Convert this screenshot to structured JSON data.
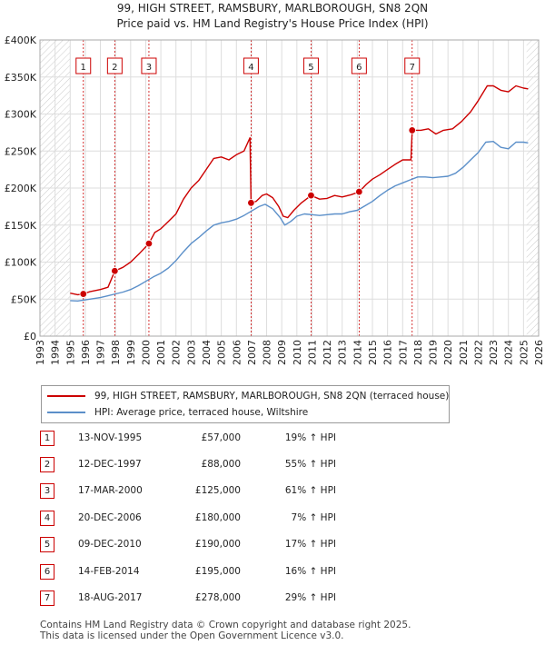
{
  "title_line1": "99, HIGH STREET, RAMSBURY, MARLBOROUGH, SN8 2QN",
  "title_line2": "Price paid vs. HM Land Registry's House Price Index (HPI)",
  "colors": {
    "property_line": "#cc0000",
    "hpi_line": "#5b8fc9",
    "grid": "#dddddd",
    "hatch": "#cccccc",
    "marker": "#cc0000"
  },
  "legend": {
    "property_label": "99, HIGH STREET, RAMSBURY, MARLBOROUGH, SN8 2QN (terraced house)",
    "hpi_label": "HPI: Average price, terraced house, Wiltshire"
  },
  "sales": [
    {
      "num": "1",
      "date": "13-NOV-1995",
      "price": "£57,000",
      "hpi": "19% ↑ HPI"
    },
    {
      "num": "2",
      "date": "12-DEC-1997",
      "price": "£88,000",
      "hpi": "55% ↑ HPI"
    },
    {
      "num": "3",
      "date": "17-MAR-2000",
      "price": "£125,000",
      "hpi": "61% ↑ HPI"
    },
    {
      "num": "4",
      "date": "20-DEC-2006",
      "price": "£180,000",
      "hpi": "7% ↑ HPI"
    },
    {
      "num": "5",
      "date": "09-DEC-2010",
      "price": "£190,000",
      "hpi": "17% ↑ HPI"
    },
    {
      "num": "6",
      "date": "14-FEB-2014",
      "price": "£195,000",
      "hpi": "16% ↑ HPI"
    },
    {
      "num": "7",
      "date": "18-AUG-2017",
      "price": "£278,000",
      "hpi": "29% ↑ HPI"
    }
  ],
  "footer_line1": "Contains HM Land Registry data © Crown copyright and database right 2025.",
  "footer_line2": "This data is licensed under the Open Government Licence v3.0.",
  "chart_data": {
    "type": "line",
    "title": "99, HIGH STREET, RAMSBURY, MARLBOROUGH, SN8 2QN",
    "subtitle": "Price paid vs. HM Land Registry's House Price Index (HPI)",
    "xlabel": "",
    "ylabel": "",
    "xlim": [
      1993,
      2026
    ],
    "ylim": [
      0,
      400000
    ],
    "x_ticks": [
      1993,
      1994,
      1995,
      1996,
      1997,
      1998,
      1999,
      2000,
      2001,
      2002,
      2003,
      2004,
      2005,
      2006,
      2007,
      2008,
      2009,
      2010,
      2011,
      2012,
      2013,
      2014,
      2015,
      2016,
      2017,
      2018,
      2019,
      2020,
      2021,
      2022,
      2023,
      2024,
      2025,
      2026
    ],
    "y_ticks": [
      0,
      50000,
      100000,
      150000,
      200000,
      250000,
      300000,
      350000,
      400000
    ],
    "y_tick_labels": [
      "£0",
      "£50K",
      "£100K",
      "£150K",
      "£200K",
      "£250K",
      "£300K",
      "£350K",
      "£400K"
    ],
    "hatched_before": 1995.0,
    "hatched_after": 2025.2,
    "grid": true,
    "series": [
      {
        "name": "99, HIGH STREET, RAMSBURY, MARLBOROUGH, SN8 2QN (terraced house)",
        "color": "#cc0000",
        "points": [
          [
            1995.0,
            58000
          ],
          [
            1995.5,
            56000
          ],
          [
            1995.87,
            57000
          ],
          [
            1996.3,
            60000
          ],
          [
            1997.0,
            63000
          ],
          [
            1997.5,
            66000
          ],
          [
            1997.95,
            88000
          ],
          [
            1998.5,
            93000
          ],
          [
            1999.0,
            100000
          ],
          [
            1999.6,
            112000
          ],
          [
            2000.21,
            125000
          ],
          [
            2000.6,
            140000
          ],
          [
            2001.0,
            145000
          ],
          [
            2001.5,
            155000
          ],
          [
            2002.0,
            165000
          ],
          [
            2002.5,
            185000
          ],
          [
            2003.0,
            200000
          ],
          [
            2003.5,
            210000
          ],
          [
            2004.0,
            225000
          ],
          [
            2004.5,
            240000
          ],
          [
            2005.0,
            242000
          ],
          [
            2005.5,
            238000
          ],
          [
            2006.0,
            245000
          ],
          [
            2006.5,
            250000
          ],
          [
            2006.9,
            268000
          ],
          [
            2006.97,
            180000
          ],
          [
            2007.3,
            182000
          ],
          [
            2007.7,
            190000
          ],
          [
            2008.0,
            192000
          ],
          [
            2008.4,
            187000
          ],
          [
            2008.8,
            175000
          ],
          [
            2009.1,
            162000
          ],
          [
            2009.4,
            160000
          ],
          [
            2009.8,
            170000
          ],
          [
            2010.3,
            180000
          ],
          [
            2010.94,
            190000
          ],
          [
            2011.5,
            185000
          ],
          [
            2012.0,
            186000
          ],
          [
            2012.5,
            190000
          ],
          [
            2013.0,
            188000
          ],
          [
            2013.6,
            191000
          ],
          [
            2014.12,
            195000
          ],
          [
            2014.6,
            205000
          ],
          [
            2015.0,
            212000
          ],
          [
            2015.5,
            218000
          ],
          [
            2016.0,
            225000
          ],
          [
            2016.5,
            232000
          ],
          [
            2017.0,
            238000
          ],
          [
            2017.55,
            238000
          ],
          [
            2017.63,
            278000
          ],
          [
            2018.2,
            278000
          ],
          [
            2018.7,
            280000
          ],
          [
            2019.2,
            273000
          ],
          [
            2019.7,
            278000
          ],
          [
            2020.3,
            280000
          ],
          [
            2020.9,
            290000
          ],
          [
            2021.5,
            303000
          ],
          [
            2022.0,
            318000
          ],
          [
            2022.6,
            338000
          ],
          [
            2023.0,
            338000
          ],
          [
            2023.5,
            332000
          ],
          [
            2024.0,
            330000
          ],
          [
            2024.5,
            338000
          ],
          [
            2025.0,
            335000
          ],
          [
            2025.3,
            334000
          ]
        ]
      },
      {
        "name": "HPI: Average price, terraced house, Wiltshire",
        "color": "#5b8fc9",
        "points": [
          [
            1995.0,
            48000
          ],
          [
            1995.5,
            47500
          ],
          [
            1996.0,
            49000
          ],
          [
            1996.5,
            50500
          ],
          [
            1997.0,
            52000
          ],
          [
            1997.5,
            54500
          ],
          [
            1998.0,
            57000
          ],
          [
            1998.5,
            59500
          ],
          [
            1999.0,
            63000
          ],
          [
            1999.5,
            68000
          ],
          [
            2000.0,
            74000
          ],
          [
            2000.5,
            80000
          ],
          [
            2001.0,
            85000
          ],
          [
            2001.5,
            92000
          ],
          [
            2002.0,
            102000
          ],
          [
            2002.5,
            114000
          ],
          [
            2003.0,
            125000
          ],
          [
            2003.5,
            133000
          ],
          [
            2004.0,
            142000
          ],
          [
            2004.5,
            150000
          ],
          [
            2005.0,
            153000
          ],
          [
            2005.5,
            155000
          ],
          [
            2006.0,
            158000
          ],
          [
            2006.5,
            163000
          ],
          [
            2007.0,
            169000
          ],
          [
            2007.5,
            175000
          ],
          [
            2007.9,
            178000
          ],
          [
            2008.4,
            172000
          ],
          [
            2008.9,
            160000
          ],
          [
            2009.2,
            150000
          ],
          [
            2009.6,
            155000
          ],
          [
            2010.0,
            162000
          ],
          [
            2010.5,
            165000
          ],
          [
            2011.0,
            164000
          ],
          [
            2011.5,
            163000
          ],
          [
            2012.0,
            164000
          ],
          [
            2012.5,
            165000
          ],
          [
            2013.0,
            165000
          ],
          [
            2013.5,
            168000
          ],
          [
            2014.0,
            170000
          ],
          [
            2014.5,
            176000
          ],
          [
            2015.0,
            182000
          ],
          [
            2015.5,
            190000
          ],
          [
            2016.0,
            197000
          ],
          [
            2016.5,
            203000
          ],
          [
            2017.0,
            207000
          ],
          [
            2017.5,
            211000
          ],
          [
            2018.0,
            215000
          ],
          [
            2018.5,
            215000
          ],
          [
            2019.0,
            214000
          ],
          [
            2019.5,
            215000
          ],
          [
            2020.0,
            216000
          ],
          [
            2020.5,
            220000
          ],
          [
            2021.0,
            228000
          ],
          [
            2021.5,
            238000
          ],
          [
            2022.0,
            248000
          ],
          [
            2022.5,
            262000
          ],
          [
            2023.0,
            263000
          ],
          [
            2023.5,
            255000
          ],
          [
            2024.0,
            253000
          ],
          [
            2024.5,
            262000
          ],
          [
            2025.0,
            262000
          ],
          [
            2025.3,
            261000
          ]
        ]
      }
    ],
    "sale_markers": [
      {
        "label": "1",
        "x": 1995.87,
        "y": 57000
      },
      {
        "label": "2",
        "x": 1997.95,
        "y": 88000
      },
      {
        "label": "3",
        "x": 2000.21,
        "y": 125000
      },
      {
        "label": "4",
        "x": 2006.97,
        "y": 180000
      },
      {
        "label": "5",
        "x": 2010.94,
        "y": 190000
      },
      {
        "label": "6",
        "x": 2014.12,
        "y": 195000
      },
      {
        "label": "7",
        "x": 2017.63,
        "y": 278000
      }
    ]
  }
}
